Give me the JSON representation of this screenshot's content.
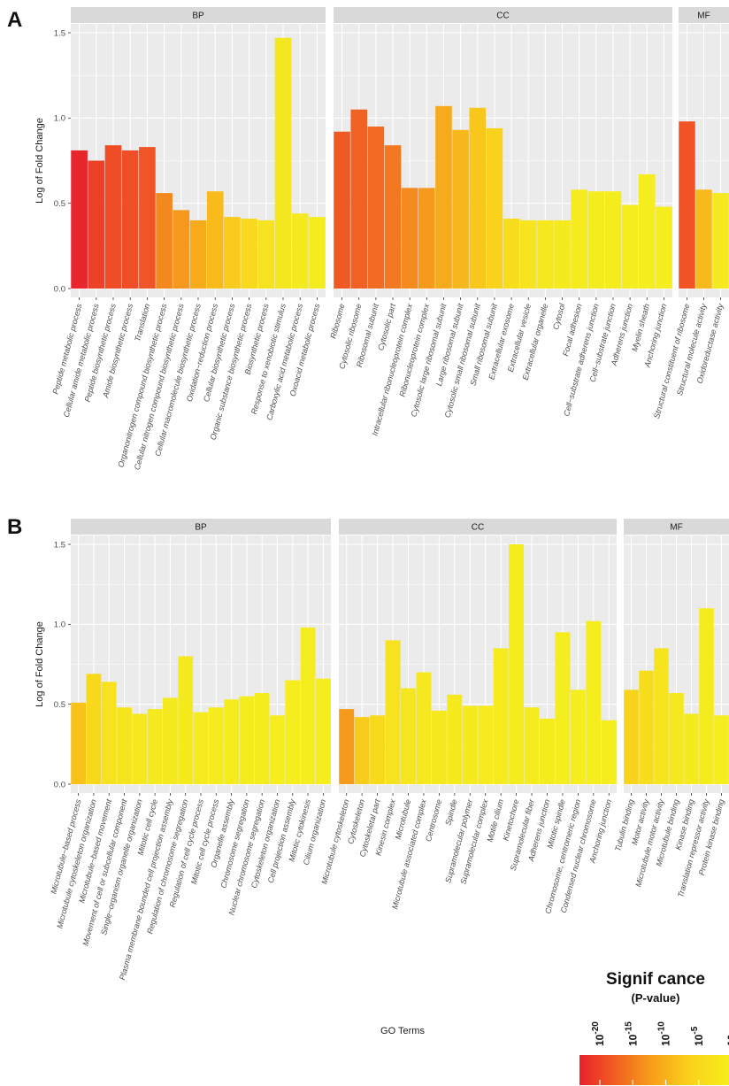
{
  "panel_labels": [
    "A",
    "B"
  ],
  "legend": {
    "title": "Signif cance",
    "subtitle": "(P-value)",
    "ticks": [
      {
        "base": "10",
        "exp": "-20"
      },
      {
        "base": "10",
        "exp": "-15"
      },
      {
        "base": "10",
        "exp": "-10"
      },
      {
        "base": "10",
        "exp": "-5"
      },
      {
        "base": "10",
        "exp": ""
      }
    ],
    "gradient_colors": [
      "#e8202a",
      "#f2621f",
      "#f8a21a",
      "#fad31a",
      "#f6ee1d"
    ]
  },
  "chart_data": [
    {
      "type": "bar",
      "panel": "A",
      "ylabel": "Log of Fold Change",
      "xlabel": "",
      "ylim": [
        0,
        1.5
      ],
      "yticks": [
        "0.0",
        "0.5",
        "1.0",
        "1.5"
      ],
      "grid": true,
      "facets": [
        {
          "name": "BP",
          "categories": [
            "Peptide metabolic process",
            "Cellular amide metabolic process",
            "Peptide biosynthetic process",
            "Amide biosynthetic process",
            "Translation",
            "Organonitrogen compound biosynthetic process",
            "Cellular nitrogen compound biosynthetic process",
            "Cellular macromolecule biosynthetic process",
            "Oxidation−reduction process",
            "Cellular biosynthetic process",
            "Organic substance biosynthetic process",
            "Biosynthetic process",
            "Response to xenobiotic stimulus",
            "Carboxylic acid metabolic process",
            "Oxoacid metabolic process"
          ],
          "values": [
            0.81,
            0.75,
            0.84,
            0.81,
            0.83,
            0.56,
            0.46,
            0.4,
            0.57,
            0.42,
            0.41,
            0.4,
            1.47,
            0.44,
            0.42
          ],
          "colors": [
            "#e8262b",
            "#ec4028",
            "#ee4d26",
            "#ee4f26",
            "#ef5526",
            "#f5871f",
            "#f6971e",
            "#f8ab1a",
            "#f8bb1b",
            "#f9cb1d",
            "#f9d91c",
            "#f6e21e",
            "#f5e71f",
            "#f5ea1f",
            "#f5ec1e"
          ]
        },
        {
          "name": "CC",
          "categories": [
            "Ribosome",
            "Cytosolic ribosome",
            "Ribosomal subunit",
            "Cytosolic part",
            "Intracellular ribonucleoprotein complex",
            "Ribonucleoprotein complex",
            "Cytosolic large ribosomal subunit",
            "Large ribosomal subunit",
            "Cytosolic small ribosomal subunit",
            "Small ribosomal subunit",
            "Extracellular exosome",
            "Extracellular vesicle",
            "Extracellular organelle",
            "Cytosol",
            "Focal adhesion",
            "Cell−substrate adherens junction",
            "Cell−substrate junction",
            "Adherens junction",
            "Myelin sheath",
            "Anchoring junction"
          ],
          "values": [
            0.92,
            1.05,
            0.95,
            0.84,
            0.59,
            0.59,
            1.07,
            0.93,
            1.06,
            0.94,
            0.41,
            0.4,
            0.4,
            0.4,
            0.58,
            0.57,
            0.57,
            0.49,
            0.67,
            0.48
          ],
          "colors": [
            "#ef5a24",
            "#f06224",
            "#f16b23",
            "#f37822",
            "#f58a1f",
            "#f69a1d",
            "#f7aa1b",
            "#f8b81b",
            "#f9c61b",
            "#f9d31b",
            "#f8dd1c",
            "#f7e31e",
            "#f6e81e",
            "#f5ea1e",
            "#f5eb1e",
            "#f5ec1e",
            "#f5ec1e",
            "#f5ed1e",
            "#f5ed1e",
            "#f5ed1e"
          ]
        },
        {
          "name": "MF",
          "categories": [
            "Structural constituent of ribosome",
            "Structural molecule activity",
            "Oxidoreductase activity"
          ],
          "values": [
            0.98,
            0.58,
            0.56
          ],
          "colors": [
            "#f15324",
            "#f8b91b",
            "#f5ea1f"
          ]
        }
      ]
    },
    {
      "type": "bar",
      "panel": "B",
      "ylabel": "Log of Fold Change",
      "xlabel": "GO Terms",
      "ylim": [
        0,
        1.5
      ],
      "yticks": [
        "0.0",
        "0.5",
        "1.0",
        "1.5"
      ],
      "grid": true,
      "facets": [
        {
          "name": "BP",
          "categories": [
            "Microtubule−based process",
            "Microtubule cytoskeleton organization",
            "Microtubule−based movement",
            "Movement of cell or subcellular component",
            "Single−organism organelle organization",
            "Mitotic cell cycle",
            "Plasma membrane bounded cell projection assembly",
            "Regulation of chromosome segregation",
            "Regulation of cell cycle process",
            "Mitotic cell cycle process",
            "Organelle assembly",
            "Chromosome segregation",
            "Nuclear chromosome segregation",
            "Cytoskeleton organization",
            "Cell projection assembly",
            "Mitotic cytokinesis",
            "Cilium organization"
          ],
          "values": [
            0.51,
            0.69,
            0.64,
            0.48,
            0.44,
            0.47,
            0.54,
            0.8,
            0.45,
            0.48,
            0.53,
            0.55,
            0.57,
            0.43,
            0.65,
            0.98,
            0.66
          ],
          "colors": [
            "#f8c21b",
            "#f8d81b",
            "#f6e21e",
            "#f6e51e",
            "#f5e81f",
            "#f5e91f",
            "#f5ea1e",
            "#f5ea1e",
            "#f5eb1e",
            "#f5eb1e",
            "#f5ec1e",
            "#f5ec1e",
            "#f5ec1e",
            "#f5ed1e",
            "#f5ed1e",
            "#f5ed1e",
            "#f5ed1e"
          ]
        },
        {
          "name": "CC",
          "categories": [
            "Microtubule cytoskeleton",
            "Cytoskeleton",
            "Cytoskeletal part",
            "Kinesin complex",
            "Microtubule",
            "Microtubule associated complex",
            "Centrosome",
            "Spindle",
            "Supramolecular polymer",
            "Supramolecular complex",
            "Motile cilium",
            "Kinetochore",
            "Supramolecular fiber",
            "Adherens junction",
            "Mitotic spindle",
            "Chromosome, centromeric region",
            "Condensed nuclear chromosome",
            "Anchoring junction"
          ],
          "values": [
            0.47,
            0.42,
            0.43,
            0.9,
            0.6,
            0.7,
            0.46,
            0.56,
            0.49,
            0.49,
            0.85,
            1.5,
            0.48,
            0.41,
            0.95,
            0.59,
            1.02,
            0.4
          ],
          "colors": [
            "#f59a1d",
            "#f8cc1c",
            "#f7da1c",
            "#f6e21e",
            "#f5e61f",
            "#f5e81f",
            "#f5e91e",
            "#f5ea1e",
            "#f5ea1e",
            "#f5eb1e",
            "#f5eb1e",
            "#f5ec1e",
            "#f5ec1e",
            "#f5ec1e",
            "#f5ed1e",
            "#f5ed1e",
            "#f5ed1e",
            "#f5ed1e"
          ]
        },
        {
          "name": "MF",
          "categories": [
            "Tubulin binding",
            "Motor activity",
            "Microtubule motor activity",
            "Microtubule binding",
            "Kinase binding",
            "Translation repressor activity",
            "Protein kinase binding"
          ],
          "values": [
            0.59,
            0.71,
            0.85,
            0.57,
            0.44,
            1.1,
            0.43
          ],
          "colors": [
            "#f8d21b",
            "#f7de1d",
            "#f6e41e",
            "#f5e81f",
            "#f5ea1e",
            "#f5ec1e",
            "#f5ed1e"
          ]
        }
      ]
    }
  ]
}
